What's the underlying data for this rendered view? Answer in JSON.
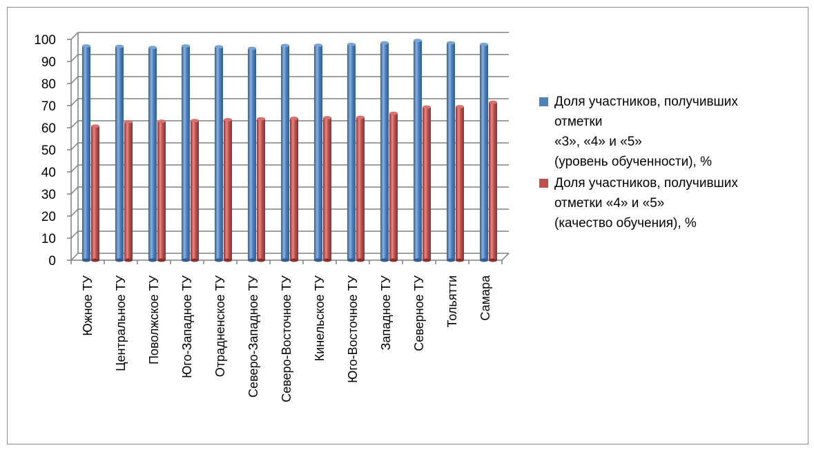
{
  "chart_data": {
    "type": "bar",
    "categories": [
      "Южное ТУ",
      "Центральное ТУ",
      "Поволжское ТУ",
      "Юго-Западное ТУ",
      "Отрадненское ТУ",
      "Северо-Западное ТУ",
      "Северо-Восточное ТУ",
      "Кинельское ТУ",
      "Юго-Восточное ТУ",
      "Западное ТУ",
      "Северное ТУ",
      "Тольятти",
      "Самара"
    ],
    "series": [
      {
        "name": "Доля участников, получивших отметки «3», «4» и «5» (уровень обученности), %",
        "color": "#4f81bd",
        "values": [
          97.0,
          96.8,
          96.3,
          97.0,
          96.6,
          95.9,
          97.2,
          97.3,
          97.7,
          98.4,
          99.5,
          98.4,
          97.7
        ]
      },
      {
        "name": "Доля участников, получивших отметки «4» и «5» (качество обучения), %",
        "color": "#c0504d",
        "values": [
          60.7,
          62.6,
          62.9,
          63.2,
          63.6,
          64.0,
          64.2,
          64.5,
          64.7,
          66.5,
          69.3,
          69.5,
          71.5
        ]
      }
    ],
    "yticks": [
      "0",
      "10",
      "20",
      "30",
      "40",
      "50",
      "60",
      "70",
      "80",
      "90",
      "100"
    ],
    "ylim": [
      0,
      100
    ],
    "grid": true,
    "legend_position": "right"
  },
  "legend": {
    "s1_lines": [
      "Доля участников, получивших",
      "отметки",
      "«3», «4» и «5»",
      "(уровень обученности), %"
    ],
    "s2_lines": [
      "Доля участников, получивших",
      "отметки «4» и «5»",
      "(качество обучения), %"
    ]
  }
}
